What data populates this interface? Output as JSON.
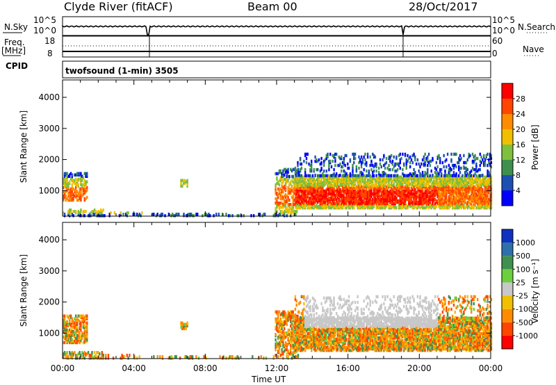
{
  "header": {
    "station": "Clyde River (fitACF)",
    "beam": "Beam 00",
    "date": "28/Oct/2017"
  },
  "panels": {
    "nsky_label": "N.Sky",
    "nsky_ticks": [
      "10^5",
      "10^0"
    ],
    "nsearch_label": "N.Search",
    "nsearch_ticks": [
      "10^5",
      "10^0"
    ],
    "freq_label": "Freq.",
    "freq_unit": "[MHz]",
    "freq_ticks": [
      "18",
      "8"
    ],
    "nave_label": "Nave",
    "nave_ticks": [
      "60",
      "0"
    ],
    "cpid_label": "CPID",
    "cpid_text": "twofsound (1-min) 3505"
  },
  "chart_data": [
    {
      "type": "heatmap",
      "name": "power",
      "ylabel": "Slant Range [km]",
      "xlabel": "Time UT",
      "xticks": [
        "00:00",
        "04:00",
        "08:00",
        "12:00",
        "16:00",
        "20:00",
        "00:00"
      ],
      "yticks": [
        "1000",
        "2000",
        "3000",
        "4000"
      ],
      "xlim_hours": [
        0,
        24
      ],
      "ylim_km": [
        180,
        4560
      ],
      "colorbar_label": "Power [dB]",
      "colorbar_ticks": [
        "4",
        "8",
        "12",
        "16",
        "20",
        "24",
        "28"
      ],
      "colorbar_colors": [
        "#0000ff",
        "#1c4fb0",
        "#3f8f4f",
        "#7fbf3f",
        "#f0c000",
        "#ff8c00",
        "#ff4500",
        "#ff0000"
      ]
    },
    {
      "type": "heatmap",
      "name": "velocity",
      "ylabel": "Slant Range [km]",
      "xlabel": "Time UT",
      "xticks": [
        "00:00",
        "04:00",
        "08:00",
        "12:00",
        "16:00",
        "20:00",
        "00:00"
      ],
      "yticks": [
        "1000",
        "2000",
        "3000",
        "4000"
      ],
      "xlim_hours": [
        0,
        24
      ],
      "ylim_km": [
        180,
        4560
      ],
      "colorbar_label": "Velocity [m s⁻¹]",
      "colorbar_ticks": [
        "1000",
        "500",
        "100",
        "25",
        "-25",
        "-100",
        "-500",
        "-1000"
      ],
      "colorbar_colors": [
        "#1030c0",
        "#2e6fa8",
        "#3f8f4f",
        "#6ccf3f",
        "#c8c8c8",
        "#f0c000",
        "#ff8c00",
        "#ff4500",
        "#ff0000"
      ]
    }
  ],
  "footer": {
    "xlabel": "Time UT"
  }
}
